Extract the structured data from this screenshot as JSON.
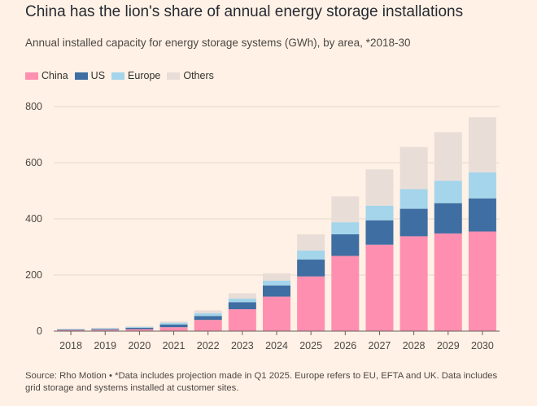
{
  "header": {
    "title": "China has the lion's share of annual energy storage installations",
    "subtitle": "Annual installed capacity for energy storage systems (GWh), by area, *2018-30"
  },
  "footer": {
    "source": "Source: Rho Motion • *Data includes projection made in Q1 2025. Europe refers to EU, EFTA and UK. Data includes grid storage and systems installed at customer sites."
  },
  "chart_data": {
    "type": "bar",
    "stacked": true,
    "title": "China has the lion's share of annual energy storage installations",
    "subtitle": "Annual installed capacity for energy storage systems (GWh), by area, *2018-30",
    "xlabel": "",
    "ylabel": "",
    "ylim": [
      0,
      800
    ],
    "yticks": [
      0,
      200,
      400,
      600,
      800
    ],
    "grid": true,
    "legend_position": "top-left",
    "categories": [
      "2018",
      "2019",
      "2020",
      "2021",
      "2022",
      "2023",
      "2024",
      "2025",
      "2026",
      "2027",
      "2028",
      "2029",
      "2030"
    ],
    "series": [
      {
        "name": "China",
        "color": "#ff8fb0",
        "values": [
          4,
          5,
          7,
          14,
          40,
          78,
          123,
          195,
          268,
          308,
          338,
          348,
          355
        ]
      },
      {
        "name": "US",
        "color": "#3e6ea2",
        "values": [
          2,
          3,
          5,
          10,
          14,
          25,
          40,
          60,
          77,
          87,
          98,
          108,
          118
        ]
      },
      {
        "name": "Europe",
        "color": "#a4d5eb",
        "values": [
          2,
          2,
          3,
          6,
          10,
          13,
          17,
          32,
          43,
          52,
          70,
          80,
          93
        ]
      },
      {
        "name": "Others",
        "color": "#e9ddd8",
        "values": [
          1,
          2,
          3,
          5,
          10,
          19,
          26,
          58,
          92,
          129,
          150,
          173,
          196
        ]
      }
    ]
  }
}
